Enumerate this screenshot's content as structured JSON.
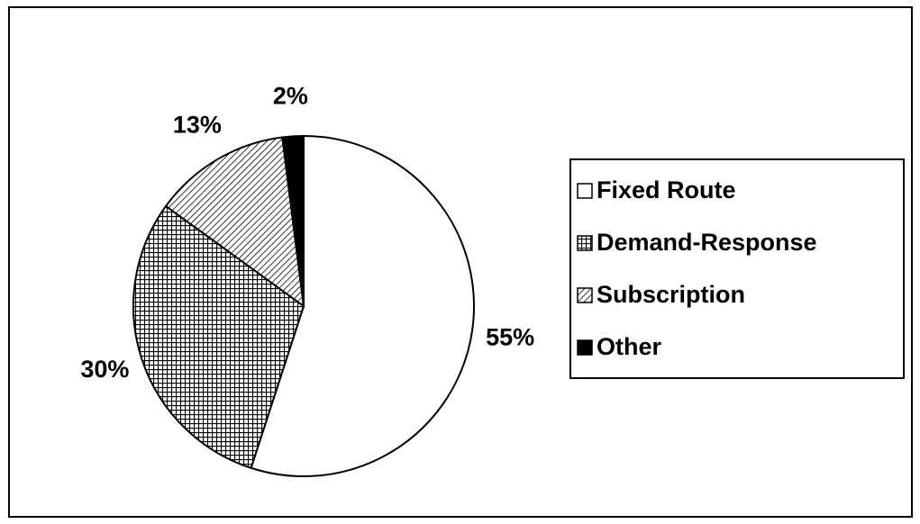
{
  "chart_data": {
    "type": "pie",
    "categories": [
      "Fixed Route",
      "Demand-Response",
      "Subscription",
      "Other"
    ],
    "values": [
      55,
      30,
      13,
      2
    ],
    "value_labels": [
      "55%",
      "30%",
      "13%",
      "2%"
    ],
    "fills": [
      "white",
      "grid",
      "hatch",
      "black"
    ],
    "legend": "right"
  }
}
